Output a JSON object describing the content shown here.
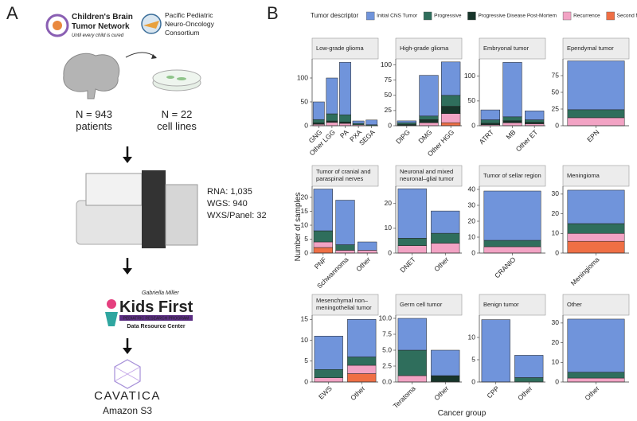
{
  "panel_a": {
    "label": "A",
    "cbtn_name": [
      "Children's Brain",
      "Tumor Network"
    ],
    "cbtn_tagline": "Until every child is cured",
    "pnoc_name": [
      "Pacific Pediatric",
      "Neuro-Oncology",
      "Consortium"
    ],
    "patients": [
      "N = 943",
      "patients"
    ],
    "cell_lines": [
      "N = 22",
      "cell lines"
    ],
    "sequencing": [
      "RNA: 1,035",
      "WGS: 940",
      "WXS/Panel: 32"
    ],
    "kids_first": {
      "top": "Gabriella Miller",
      "name": "Kids First",
      "program": "PEDIATRIC RESEARCH PROGRAM",
      "center": "Data Resource Center"
    },
    "cavatica": "CAVATICA",
    "storage": "Amazon S3"
  },
  "chart_data": {
    "type": "bar",
    "stacked": true,
    "label": "B",
    "legend_title": "Tumor descriptor",
    "ylabel": "Number of samples",
    "xlabel": "Cancer group",
    "series": [
      {
        "name": "Initial CNS Tumor",
        "color": "#7094db"
      },
      {
        "name": "Progressive",
        "color": "#2f6e5c"
      },
      {
        "name": "Progressive Disease Post-Mortem",
        "color": "#17352a"
      },
      {
        "name": "Recurrence",
        "color": "#f2a3c4"
      },
      {
        "name": "Second Malignancy",
        "color": "#ef6f45"
      }
    ],
    "panels": [
      {
        "title": "Low-grade glioma",
        "categories": [
          "GNG",
          "Other LGG",
          "PA",
          "PXA",
          "SEGA"
        ],
        "values": [
          [
            37,
            75,
            110,
            5,
            10
          ],
          [
            7,
            15,
            15,
            3,
            2
          ],
          [
            3,
            3,
            3,
            0,
            0
          ],
          [
            3,
            7,
            5,
            2,
            0
          ],
          [
            0,
            0,
            0,
            0,
            0
          ]
        ],
        "ylim": [
          0,
          140
        ],
        "yticks": [
          0,
          50,
          100
        ]
      },
      {
        "title": "High-grade glioma",
        "categories": [
          "DIPG",
          "DMG",
          "Other HGG"
        ],
        "values": [
          [
            3,
            67,
            55
          ],
          [
            3,
            6,
            18
          ],
          [
            2,
            5,
            12
          ],
          [
            0,
            5,
            15
          ],
          [
            0,
            0,
            5
          ]
        ],
        "ylim": [
          0,
          110
        ],
        "yticks": [
          0,
          25,
          50,
          75,
          100
        ]
      },
      {
        "title": "Embryonal tumor",
        "categories": [
          "ATRT",
          "MB",
          "Other ET"
        ],
        "values": [
          [
            20,
            110,
            18
          ],
          [
            7,
            8,
            5
          ],
          [
            3,
            4,
            3
          ],
          [
            2,
            6,
            4
          ],
          [
            0,
            0,
            0
          ]
        ],
        "ylim": [
          0,
          135
        ],
        "yticks": [
          0,
          50,
          100
        ]
      },
      {
        "title": "Ependymal tumor",
        "categories": [
          "EPN"
        ],
        "values": [
          [
            73
          ],
          [
            12
          ],
          [
            0
          ],
          [
            12
          ],
          [
            0
          ]
        ],
        "ylim": [
          0,
          100
        ],
        "yticks": [
          0,
          25,
          50,
          75
        ]
      },
      {
        "title": "Tumor of cranial and paraspinal nerves",
        "categories": [
          "PNF",
          "Schwannoma",
          "Other"
        ],
        "values": [
          [
            15,
            16,
            3
          ],
          [
            4,
            2,
            0
          ],
          [
            0,
            0,
            0
          ],
          [
            2,
            1,
            1
          ],
          [
            2,
            0,
            0
          ]
        ],
        "ylim": [
          0,
          24
        ],
        "yticks": [
          0,
          5,
          10,
          15,
          20
        ]
      },
      {
        "title": "Neuronal and mixed neuronal–glial tumor",
        "categories": [
          "DNET",
          "Other"
        ],
        "values": [
          [
            20,
            9
          ],
          [
            3,
            4
          ],
          [
            0,
            0
          ],
          [
            3,
            4
          ],
          [
            0,
            0
          ]
        ],
        "ylim": [
          0,
          27
        ],
        "yticks": [
          0,
          10,
          20
        ]
      },
      {
        "title": "Tumor of sellar region",
        "categories": [
          "CRANIO"
        ],
        "values": [
          [
            31
          ],
          [
            4
          ],
          [
            0
          ],
          [
            4
          ],
          [
            0
          ]
        ],
        "ylim": [
          0,
          42
        ],
        "yticks": [
          0,
          10,
          20,
          30,
          40
        ]
      },
      {
        "title": "Meningioma",
        "categories": [
          "Meningioma"
        ],
        "values": [
          [
            17
          ],
          [
            5
          ],
          [
            0
          ],
          [
            4
          ],
          [
            6
          ]
        ],
        "ylim": [
          0,
          34
        ],
        "yticks": [
          0,
          10,
          20,
          30
        ]
      },
      {
        "title": "Mesenchymal non–meningothelial tumor",
        "categories": [
          "EWS",
          "Other"
        ],
        "values": [
          [
            8,
            9
          ],
          [
            2,
            2
          ],
          [
            0,
            0
          ],
          [
            1,
            2
          ],
          [
            0,
            2
          ]
        ],
        "ylim": [
          0,
          16
        ],
        "yticks": [
          0,
          5,
          10,
          15
        ]
      },
      {
        "title": "Germ cell tumor",
        "categories": [
          "Teratoma",
          "Other"
        ],
        "values": [
          [
            5,
            4
          ],
          [
            4,
            0
          ],
          [
            0,
            1
          ],
          [
            1,
            0
          ],
          [
            0,
            0
          ]
        ],
        "ylim": [
          0,
          10.5
        ],
        "yticks": [
          {
            "value": 0,
            "label": "0.0"
          },
          {
            "value": 2.5,
            "label": "2.5"
          },
          {
            "value": 5,
            "label": "5.0"
          },
          {
            "value": 7.5,
            "label": "7.5"
          },
          {
            "value": 10,
            "label": "10.0"
          }
        ]
      },
      {
        "title": "Benign tumor",
        "categories": [
          "CPP",
          "Other"
        ],
        "values": [
          [
            14,
            5
          ],
          [
            0,
            1
          ],
          [
            0,
            0
          ],
          [
            0,
            0
          ],
          [
            0,
            0
          ]
        ],
        "ylim": [
          0,
          15
        ],
        "yticks": [
          0,
          5,
          10
        ]
      },
      {
        "title": "Other",
        "categories": [
          "Other"
        ],
        "values": [
          [
            27
          ],
          [
            3
          ],
          [
            0
          ],
          [
            2
          ],
          [
            0
          ]
        ],
        "ylim": [
          0,
          34
        ],
        "yticks": [
          0,
          10,
          20,
          30
        ]
      }
    ]
  }
}
